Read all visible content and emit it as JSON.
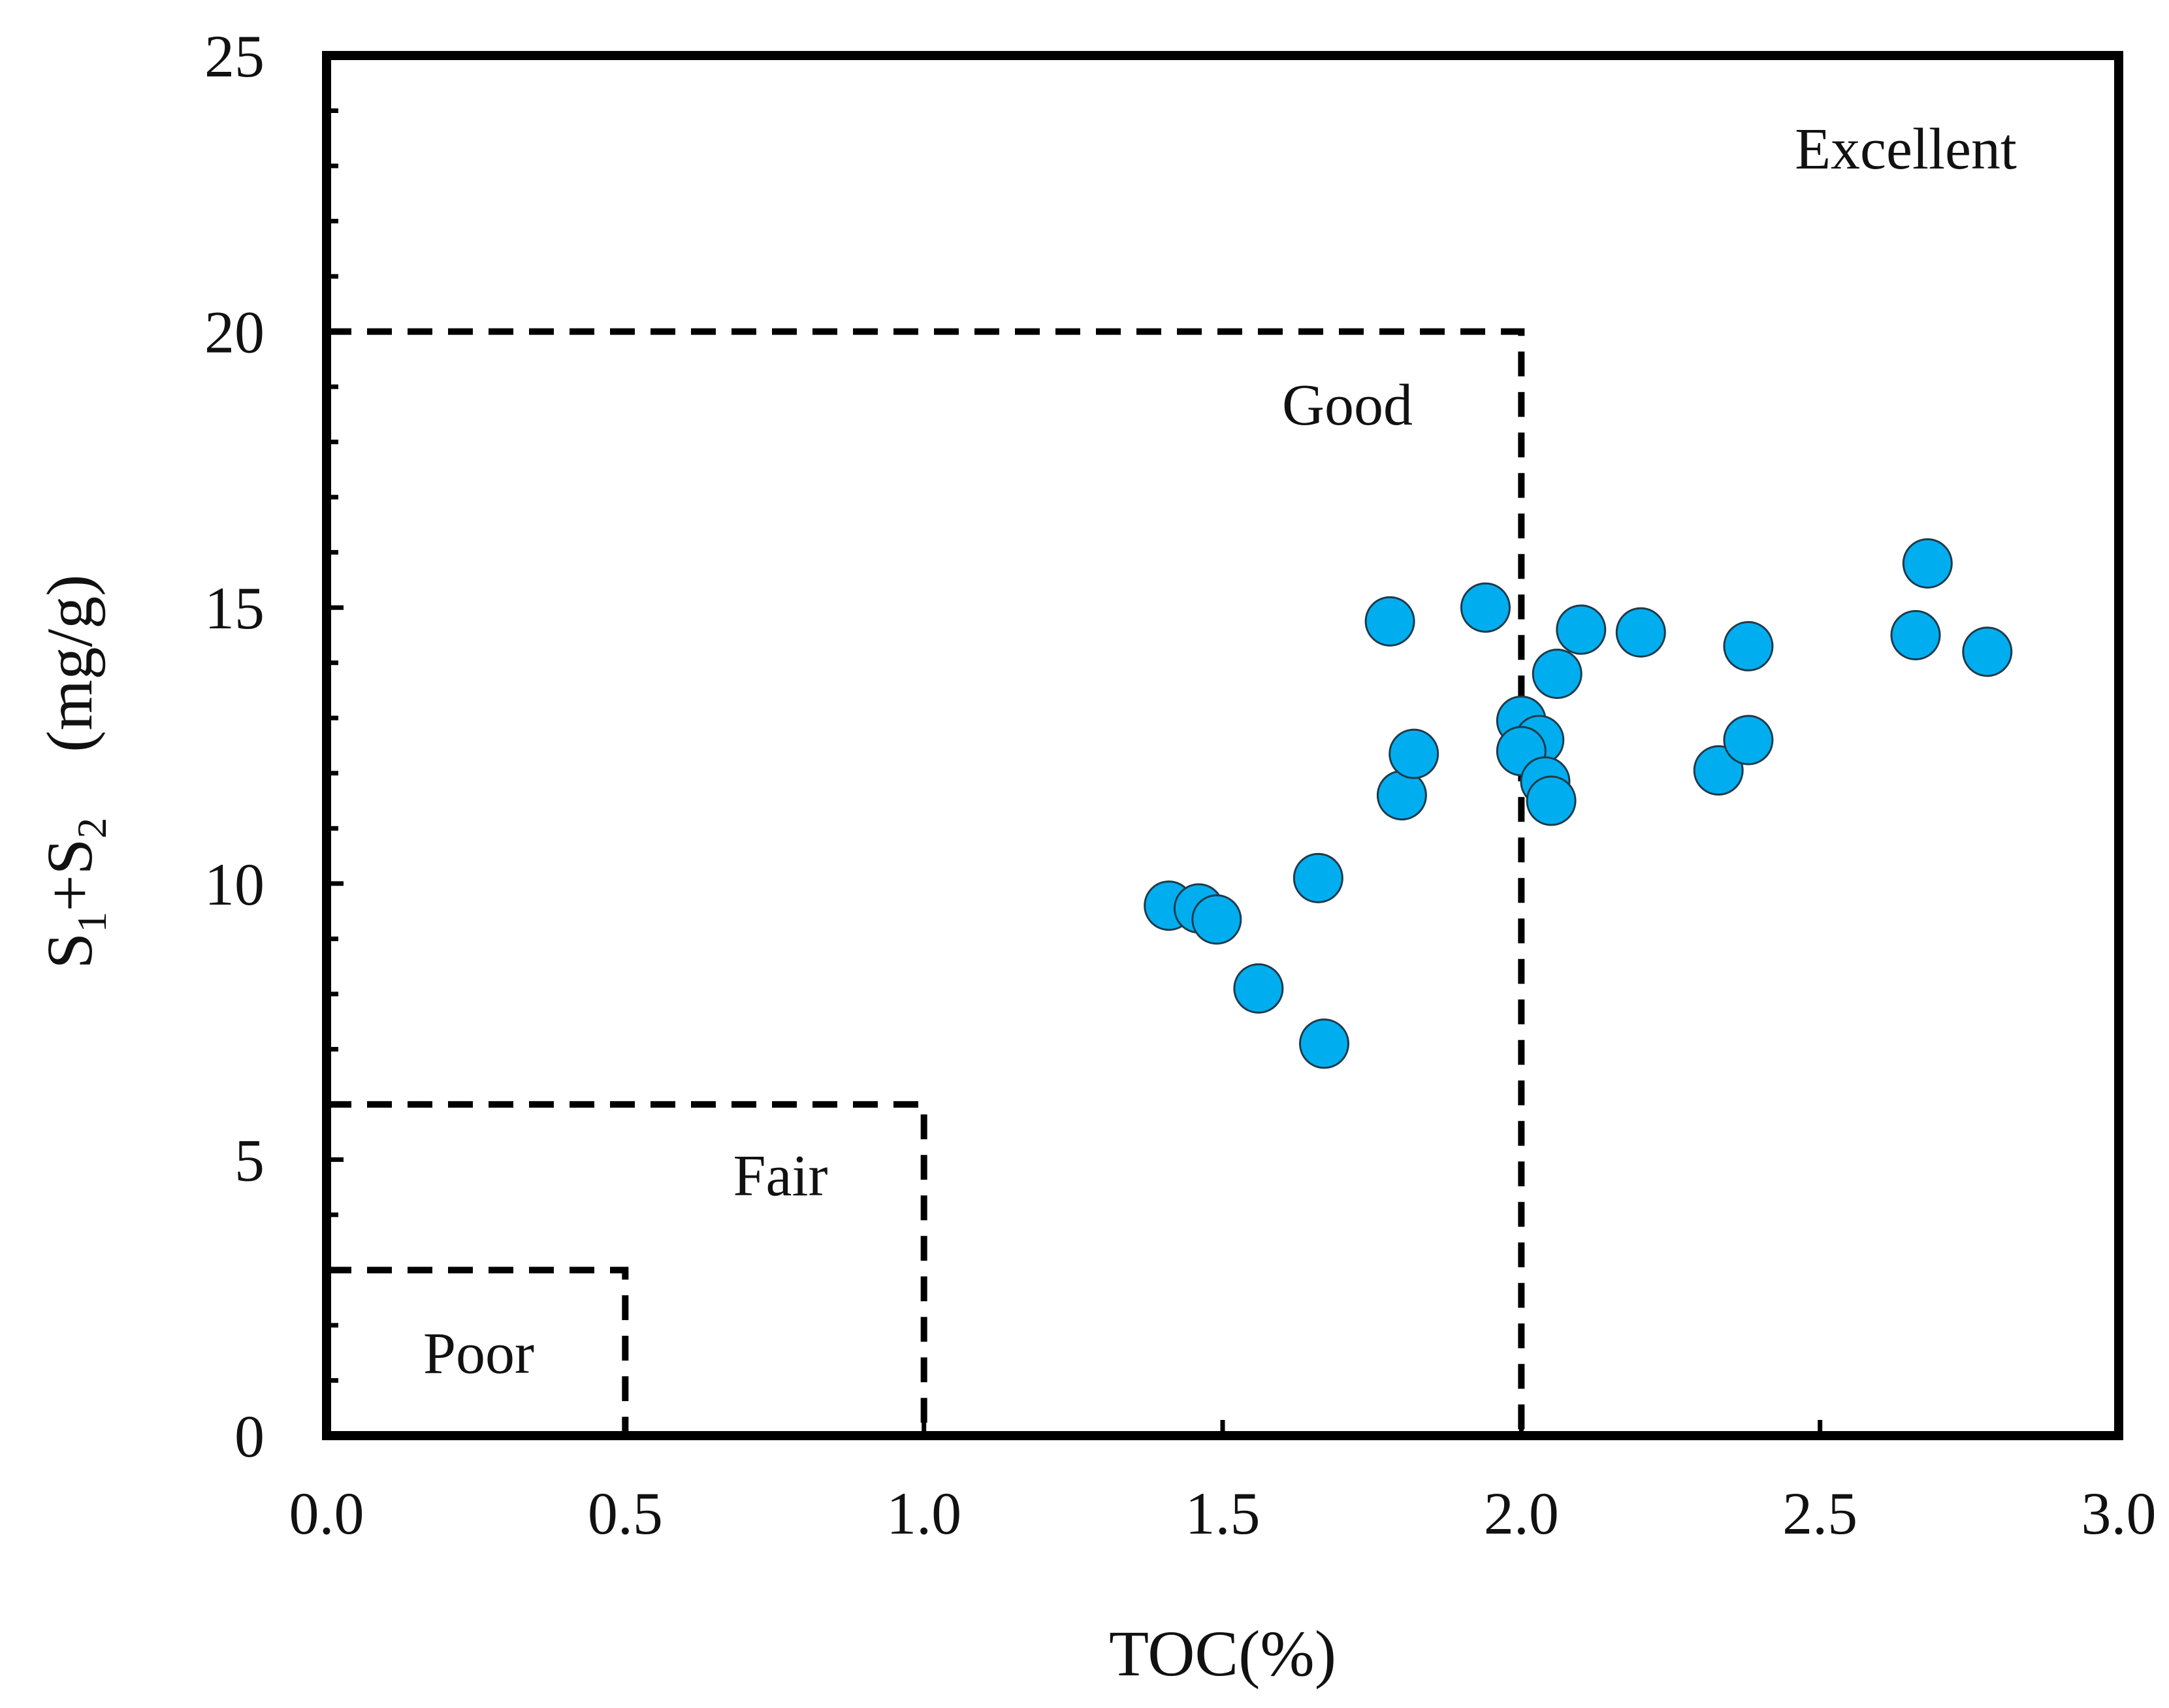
{
  "chart_data": {
    "type": "scatter",
    "title": "",
    "xlabel": "TOC(%)",
    "ylabel": {
      "parts": [
        "S",
        "1",
        "+S",
        "2",
        "　(mg/g)"
      ]
    },
    "xlim": [
      0,
      3.0
    ],
    "ylim": [
      0,
      25
    ],
    "x_ticks": [
      "0.0",
      "0.5",
      "1.0",
      "1.5",
      "2.0",
      "2.5",
      "3.0"
    ],
    "y_ticks": [
      "0",
      "5",
      "10",
      "15",
      "20",
      "25"
    ],
    "point_color": "#00AEEF",
    "point_stroke": "#1f3a4a",
    "regions": [
      {
        "label": "Poor",
        "toc_max": 0.5,
        "s_max": 3
      },
      {
        "label": "Fair",
        "toc_max": 1.0,
        "s_max": 6
      },
      {
        "label": "Good",
        "toc_max": 2.0,
        "s_max": 20
      },
      {
        "label": "Excellent",
        "toc_max": 3.0,
        "s_max": 25
      }
    ],
    "points": [
      {
        "x": 1.41,
        "y": 9.6
      },
      {
        "x": 1.46,
        "y": 9.55
      },
      {
        "x": 1.49,
        "y": 9.35
      },
      {
        "x": 1.56,
        "y": 8.1
      },
      {
        "x": 1.66,
        "y": 10.1
      },
      {
        "x": 1.67,
        "y": 7.1
      },
      {
        "x": 1.78,
        "y": 14.75
      },
      {
        "x": 1.8,
        "y": 11.6
      },
      {
        "x": 1.82,
        "y": 12.35
      },
      {
        "x": 1.94,
        "y": 15.0
      },
      {
        "x": 2.0,
        "y": 12.95
      },
      {
        "x": 2.03,
        "y": 12.6
      },
      {
        "x": 2.0,
        "y": 12.4
      },
      {
        "x": 2.04,
        "y": 11.85
      },
      {
        "x": 2.05,
        "y": 11.5
      },
      {
        "x": 2.06,
        "y": 13.8
      },
      {
        "x": 2.1,
        "y": 14.6
      },
      {
        "x": 2.2,
        "y": 14.55
      },
      {
        "x": 2.33,
        "y": 12.05
      },
      {
        "x": 2.38,
        "y": 14.3
      },
      {
        "x": 2.38,
        "y": 12.6
      },
      {
        "x": 2.66,
        "y": 14.5
      },
      {
        "x": 2.68,
        "y": 15.8
      },
      {
        "x": 2.78,
        "y": 14.2
      }
    ]
  }
}
